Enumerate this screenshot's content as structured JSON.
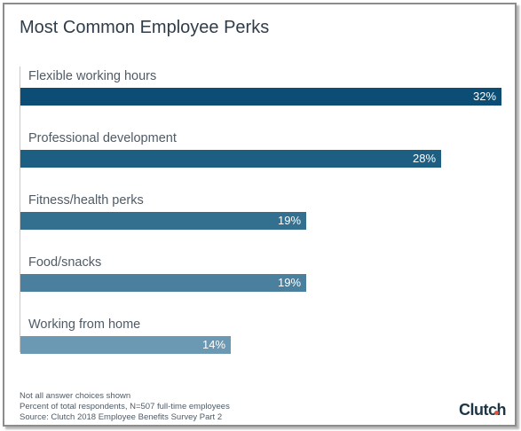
{
  "chart_data": {
    "type": "bar",
    "orientation": "horizontal",
    "title": "Most Common Employee Perks",
    "categories": [
      "Flexible working hours",
      "Professional development",
      "Fitness/health perks",
      "Food/snacks",
      "Working from home"
    ],
    "values": [
      32,
      28,
      19,
      19,
      14
    ],
    "value_labels": [
      "32%",
      "28%",
      "19%",
      "19%",
      "14%"
    ],
    "xlim": [
      0,
      32
    ],
    "colors": [
      "#0b4d74",
      "#1c5f82",
      "#336f8f",
      "#4a809e",
      "#6b98b2"
    ],
    "grid": false,
    "notes": [
      "Not all answer choices shown",
      "Percent of total respondents, N=507 full-time employees",
      "Source: Clutch 2018 Employee Benefits Survey Part 2"
    ]
  },
  "brand": {
    "logo_text": "Clutch",
    "accent": "#e0543c"
  }
}
